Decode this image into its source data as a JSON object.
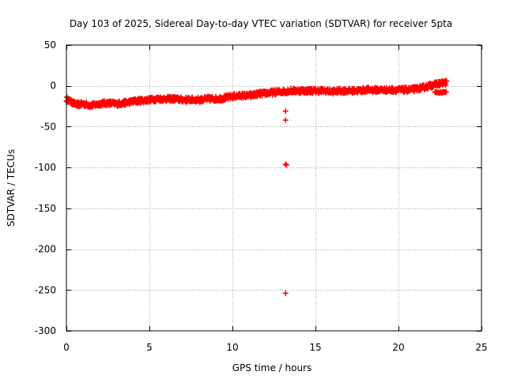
{
  "chart_data": {
    "type": "scatter",
    "title": "Day 103 of 2025, Sidereal Day-to-day VTEC variation (SDTVAR) for receiver 5pta",
    "xlabel": "GPS time / hours",
    "ylabel": "SDTVAR / TECUs",
    "xlim": [
      0,
      25
    ],
    "ylim": [
      -300,
      50
    ],
    "x_ticks": [
      0,
      5,
      10,
      15,
      20,
      25
    ],
    "y_ticks": [
      50,
      0,
      -50,
      -100,
      -150,
      -200,
      -250,
      -300
    ],
    "grid": true,
    "marker": "+",
    "marker_color": "#ff0000",
    "series": [
      {
        "name": "SDTVAR",
        "trend": [
          [
            0.0,
            -16
          ],
          [
            0.3,
            -20
          ],
          [
            0.6,
            -23
          ],
          [
            1.0,
            -22
          ],
          [
            1.5,
            -24
          ],
          [
            2.0,
            -22
          ],
          [
            2.5,
            -21
          ],
          [
            3.0,
            -22
          ],
          [
            3.5,
            -21
          ],
          [
            4.0,
            -19
          ],
          [
            4.5,
            -18
          ],
          [
            5.0,
            -17
          ],
          [
            5.5,
            -16
          ],
          [
            6.0,
            -16
          ],
          [
            6.5,
            -16
          ],
          [
            7.0,
            -17
          ],
          [
            7.5,
            -17
          ],
          [
            8.0,
            -17
          ],
          [
            8.5,
            -16
          ],
          [
            9.0,
            -16
          ],
          [
            9.5,
            -15
          ],
          [
            10.0,
            -13
          ],
          [
            10.5,
            -12
          ],
          [
            11.0,
            -12
          ],
          [
            11.5,
            -10
          ],
          [
            12.0,
            -9
          ],
          [
            12.5,
            -8
          ],
          [
            13.0,
            -7
          ],
          [
            13.5,
            -6
          ],
          [
            14.0,
            -6
          ],
          [
            14.5,
            -6
          ],
          [
            15.0,
            -6
          ],
          [
            15.5,
            -6
          ],
          [
            16.0,
            -7
          ],
          [
            16.5,
            -6
          ],
          [
            17.0,
            -6
          ],
          [
            17.5,
            -6
          ],
          [
            18.0,
            -5
          ],
          [
            18.5,
            -5
          ],
          [
            19.0,
            -5
          ],
          [
            19.5,
            -5
          ],
          [
            20.0,
            -5
          ],
          [
            20.5,
            -5
          ],
          [
            21.0,
            -4
          ],
          [
            21.5,
            -2
          ],
          [
            22.0,
            1
          ],
          [
            22.5,
            3
          ],
          [
            22.9,
            4
          ]
        ],
        "spread": 3,
        "secondary": [
          [
            22.2,
            -8
          ],
          [
            22.5,
            -8
          ],
          [
            22.9,
            -8
          ]
        ],
        "outliers": [
          [
            13.2,
            -31
          ],
          [
            13.2,
            -42
          ],
          [
            13.2,
            -96
          ],
          [
            13.25,
            -97
          ],
          [
            13.2,
            -254
          ]
        ]
      }
    ]
  }
}
